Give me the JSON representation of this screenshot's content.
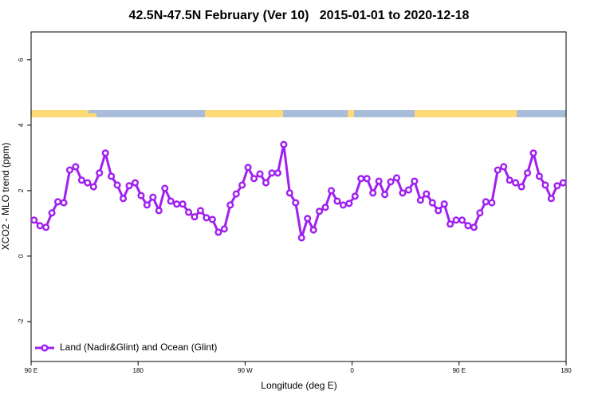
{
  "chart_data": {
    "type": "line",
    "title": "42.5N-47.5N February (Ver 10)   2015-01-01 to 2020-12-18",
    "xlabel": "Longitude (deg E)",
    "ylabel": "XCO2 - MLO trend (ppm)",
    "xlim": [
      90,
      540
    ],
    "ylim": [
      -3.22,
      6.85
    ],
    "xticks": [
      {
        "value": 90,
        "label": "90 E"
      },
      180,
      {
        "value": 270,
        "label": "90 W"
      },
      {
        "value": 360,
        "label": "0"
      },
      {
        "value": 450,
        "label": "90 E"
      },
      {
        "value": 540,
        "label": "180"
      }
    ],
    "yticks": [
      -2,
      0,
      2,
      4,
      6
    ],
    "legend": "bottomleft",
    "x": [
      92.5,
      97.5,
      102.5,
      107.5,
      112.5,
      117.5,
      122.5,
      127.5,
      132.5,
      137.5,
      142.5,
      147.5,
      152.5,
      157.5,
      162.5,
      167.5,
      172.5,
      177.5,
      182.5,
      187.5,
      192.5,
      197.5,
      202.5,
      207.5,
      212.5,
      217.5,
      222.5,
      227.5,
      232.5,
      237.5,
      242.5,
      247.5,
      252.5,
      257.5,
      262.5,
      267.5,
      272.5,
      277.5,
      282.5,
      287.5,
      292.5,
      297.5,
      302.5,
      307.5,
      312.5,
      317.5,
      322.5,
      327.5,
      332.5,
      337.5,
      342.5,
      347.5,
      352.5,
      357.5,
      362.5,
      367.5,
      372.5,
      377.5,
      382.5,
      387.5,
      392.5,
      397.5,
      402.5,
      407.5,
      412.5,
      417.5,
      422.5,
      427.5,
      432.5,
      437.5,
      442.5,
      447.5,
      452.5,
      457.5,
      462.5,
      467.5,
      472.5,
      477.5,
      482.5,
      487.5,
      492.5,
      497.5,
      502.5,
      507.5,
      512.5,
      517.5,
      522.5,
      527.5,
      532.5,
      537.5
    ],
    "series": [
      {
        "name": "Land (Nadir&Glint) and Ocean (Glint)",
        "color": "#a020f0",
        "values": [
          1.1,
          0.93,
          0.88,
          1.32,
          1.66,
          1.63,
          2.63,
          2.73,
          2.32,
          2.24,
          2.12,
          2.54,
          3.15,
          2.44,
          2.17,
          1.76,
          2.15,
          2.24,
          1.85,
          1.56,
          1.8,
          1.39,
          2.07,
          1.68,
          1.59,
          1.59,
          1.34,
          1.2,
          1.39,
          1.17,
          1.12,
          0.73,
          0.83,
          1.56,
          1.9,
          2.17,
          2.71,
          2.37,
          2.51,
          2.24,
          2.54,
          2.54,
          3.41,
          1.93,
          1.63,
          0.56,
          1.15,
          0.8,
          1.37,
          1.49,
          2.0,
          1.68,
          1.56,
          1.61,
          1.83,
          2.37,
          2.37,
          1.93,
          2.29,
          1.88,
          2.27,
          2.39,
          1.93,
          2.02,
          2.29,
          1.71,
          1.9,
          1.63,
          1.39,
          1.59,
          0.98,
          1.1,
          1.1,
          0.93,
          0.88,
          1.32,
          1.66,
          1.63,
          2.63,
          2.73,
          2.32,
          2.24,
          2.12,
          2.54,
          3.15,
          2.44,
          2.17,
          1.76,
          2.15,
          2.24
        ]
      }
    ]
  }
}
